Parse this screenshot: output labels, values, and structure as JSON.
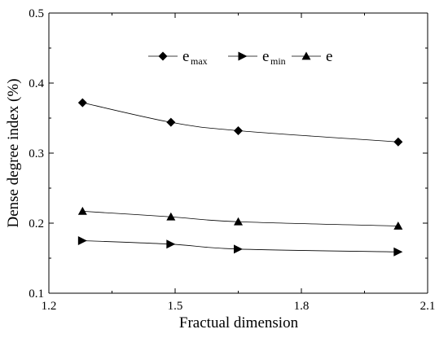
{
  "chart_data": {
    "type": "line",
    "xlabel": "Fractual dimension",
    "ylabel": "Dense degree index (%)",
    "xlim": [
      1.2,
      2.1
    ],
    "ylim": [
      0.1,
      0.5
    ],
    "xticks": [
      "1.2",
      "1.5",
      "1.8",
      "2.1"
    ],
    "yticks": [
      "0.1",
      "0.2",
      "0.3",
      "0.4",
      "0.5"
    ],
    "grid": false,
    "legend_position": "top-center",
    "series": [
      {
        "name_main": "e",
        "name_sub": "max",
        "marker": "diamond",
        "x": [
          1.28,
          1.49,
          1.65,
          2.03
        ],
        "y": [
          0.372,
          0.344,
          0.332,
          0.316
        ]
      },
      {
        "name_main": "e",
        "name_sub": "min",
        "marker": "triangle-right",
        "x": [
          1.28,
          1.49,
          1.65,
          2.03
        ],
        "y": [
          0.175,
          0.17,
          0.163,
          0.159
        ]
      },
      {
        "name_main": "e",
        "name_sub": "",
        "marker": "triangle-up",
        "x": [
          1.28,
          1.49,
          1.65,
          2.03
        ],
        "y": [
          0.217,
          0.209,
          0.202,
          0.196
        ]
      }
    ]
  }
}
